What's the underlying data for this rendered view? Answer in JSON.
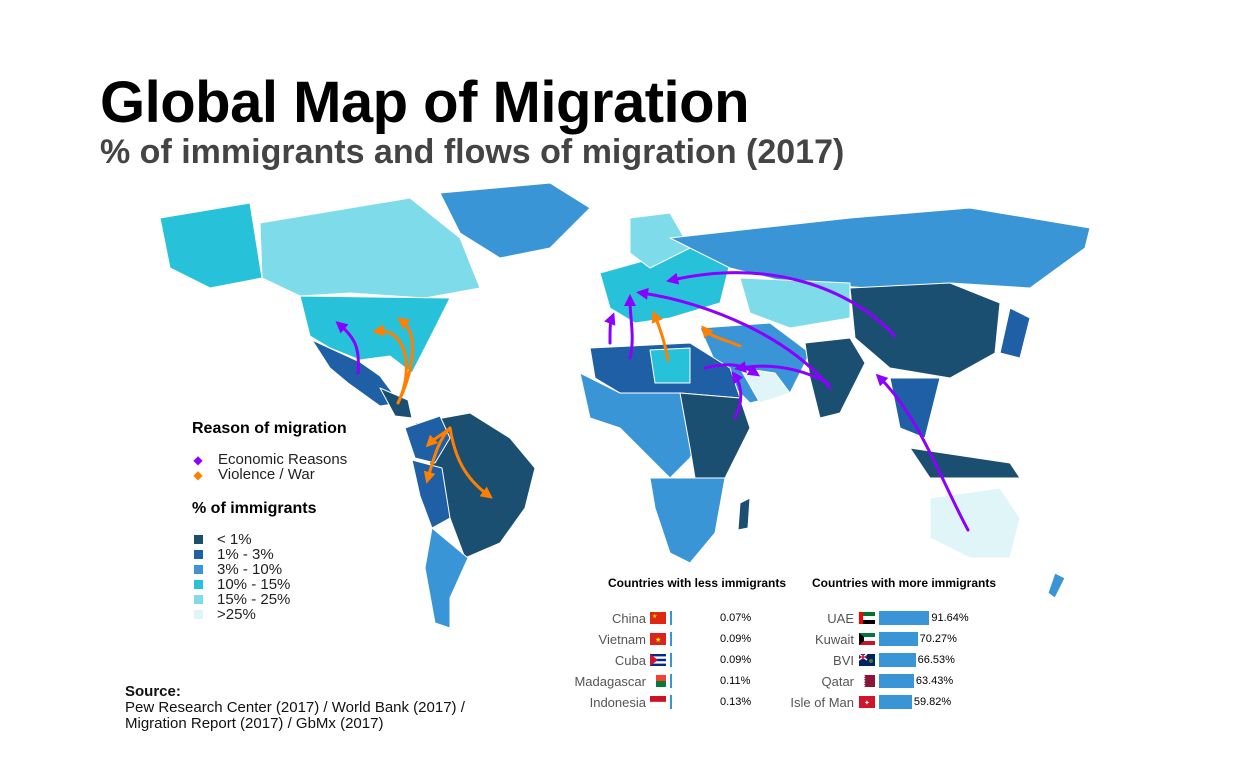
{
  "title": "Global Map of Migration",
  "subtitle": "% of immigrants and flows of migration (2017)",
  "legend": {
    "reason_title": "Reason of migration",
    "reasons": [
      {
        "label": "Economic Reasons",
        "color": "#8b00ff"
      },
      {
        "label": "Violence / War",
        "color": "#ff7f00"
      }
    ],
    "pct_title": "% of immigrants",
    "bins": [
      {
        "label": "< 1%",
        "color": "#1b4f72"
      },
      {
        "label": "1% - 3%",
        "color": "#1f5fa6"
      },
      {
        "label": "3% - 10%",
        "color": "#3a95d6"
      },
      {
        "label": "10% - 15%",
        "color": "#27c2d9"
      },
      {
        "label": "15% - 25%",
        "color": "#7edbe9"
      },
      {
        "label": ">25%",
        "color": "#e0f5f8"
      }
    ]
  },
  "less": {
    "header": "Countries with less immigrants",
    "rows": [
      {
        "country": "China",
        "value": "0.07%",
        "pct": 0.07,
        "flag": "cn"
      },
      {
        "country": "Vietnam",
        "value": "0.09%",
        "pct": 0.09,
        "flag": "vn"
      },
      {
        "country": "Cuba",
        "value": "0.09%",
        "pct": 0.09,
        "flag": "cu"
      },
      {
        "country": "Madagascar",
        "value": "0.11%",
        "pct": 0.11,
        "flag": "mg"
      },
      {
        "country": "Indonesia",
        "value": "0.13%",
        "pct": 0.13,
        "flag": "id"
      }
    ]
  },
  "more": {
    "header": "Countries with more immigrants",
    "rows": [
      {
        "country": "UAE",
        "value": "91.64%",
        "pct": 91.64,
        "flag": "ae"
      },
      {
        "country": "Kuwait",
        "value": "70.27%",
        "pct": 70.27,
        "flag": "kw"
      },
      {
        "country": "BVI",
        "value": "66.53%",
        "pct": 66.53,
        "flag": "vg"
      },
      {
        "country": "Qatar",
        "value": "63.43%",
        "pct": 63.43,
        "flag": "qa"
      },
      {
        "country": "Isle of Man",
        "value": "59.82%",
        "pct": 59.82,
        "flag": "im"
      }
    ]
  },
  "source": {
    "label": "Source:",
    "line1": "Pew Research Center (2017) / World Bank (2017) /",
    "line2": "Migration Report (2017) / GbMx (2017)"
  }
}
